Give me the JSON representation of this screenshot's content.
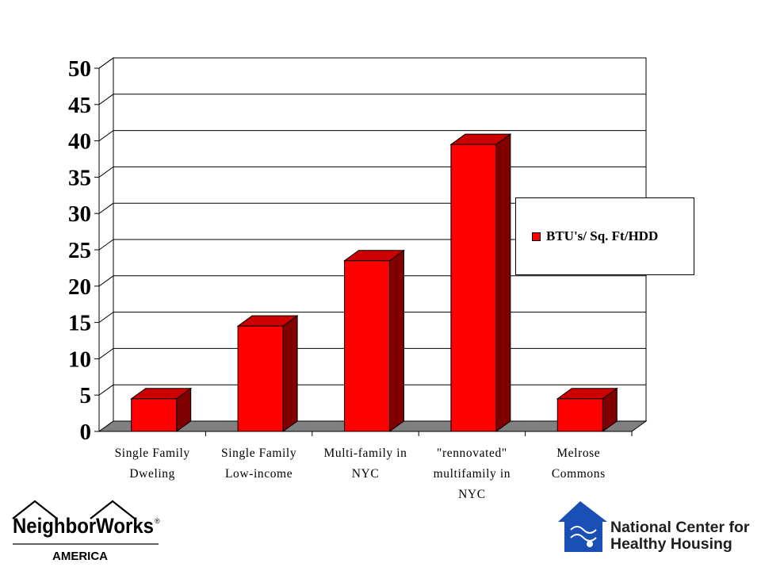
{
  "chart_data": {
    "type": "bar",
    "categories": [
      [
        "Single Family",
        "Dweling"
      ],
      [
        "Single Family",
        "Low-income"
      ],
      [
        "Multi-family in",
        "NYC"
      ],
      [
        "\"rennovated\"",
        "multifamily in",
        "NYC"
      ],
      [
        "Melrose",
        "Commons"
      ]
    ],
    "series": [
      {
        "name": "BTU's/ Sq. Ft/HDD",
        "values": [
          4.5,
          14.5,
          23.5,
          39.5,
          4.5
        ],
        "color": "#ff0000"
      }
    ],
    "ylim": [
      0,
      50
    ],
    "yticks": [
      "0",
      "5",
      "10",
      "15",
      "20",
      "25",
      "30",
      "35",
      "40",
      "45",
      "50"
    ],
    "title": "",
    "xlabel": "",
    "ylabel": "",
    "grid": true,
    "style": "3d",
    "legend_position": "right"
  },
  "logos": {
    "left": {
      "name": "NeighborWorks",
      "reg": "®",
      "sub": "AMERICA"
    },
    "right": {
      "line1": "National Center for",
      "line2": "Healthy Housing",
      "icon_color": "#1a4fb5"
    }
  }
}
